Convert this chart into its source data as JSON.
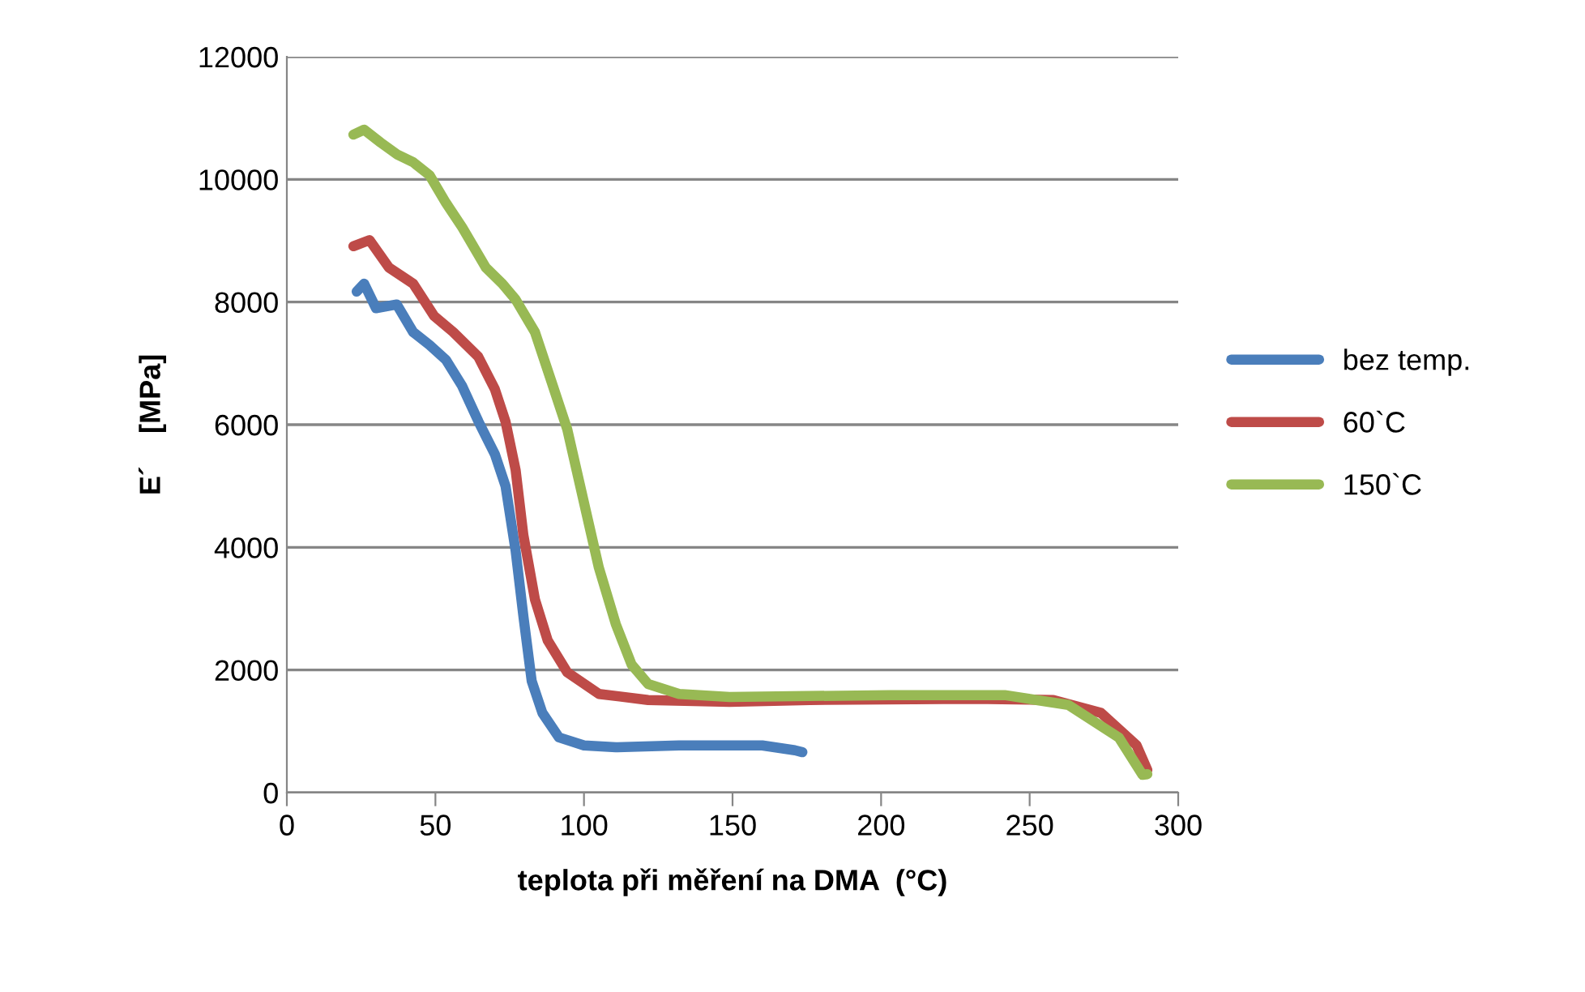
{
  "chart_data": {
    "type": "line",
    "xlabel": "teplota při měření na DMA  (°C)",
    "ylabel": "E´    [MPa]",
    "xlim": [
      0,
      300
    ],
    "xticks": [
      0,
      50,
      100,
      150,
      200,
      250,
      300
    ],
    "ylim": [
      0,
      12000
    ],
    "yticks": [
      0,
      2000,
      4000,
      6000,
      8000,
      10000,
      12000
    ],
    "grid": "y",
    "legend": "right",
    "marker": "none",
    "line_style": "solid",
    "series": [
      {
        "name": "bez temp.",
        "color": "#4a7ebb",
        "x": [
          23.5,
          26,
          30,
          37,
          42.5,
          48,
          53.5,
          59,
          64.5,
          70,
          73.6,
          77,
          79.6,
          82.4,
          86,
          91.6,
          100,
          110.7,
          132,
          160,
          171,
          173.5
        ],
        "values": [
          8170,
          8300,
          7900,
          7960,
          7510,
          7300,
          7060,
          6630,
          6050,
          5520,
          5000,
          3940,
          2880,
          1820,
          1300,
          900,
          770,
          740,
          770,
          770,
          690,
          660
        ]
      },
      {
        "name": "60`C",
        "color": "#be4b48",
        "x": [
          22.4,
          27.8,
          34.4,
          42.5,
          49.6,
          56,
          64.4,
          70,
          73.6,
          77,
          79.6,
          83.5,
          87.8,
          94.4,
          105,
          121.6,
          149,
          176,
          231,
          258,
          274,
          286,
          289.6
        ],
        "values": [
          8910,
          9010,
          8560,
          8300,
          7770,
          7510,
          7110,
          6580,
          6050,
          5260,
          4200,
          3150,
          2480,
          1960,
          1610,
          1510,
          1480,
          1510,
          1530,
          1510,
          1300,
          770,
          370
        ]
      },
      {
        "name": "150`C",
        "color": "#98b954",
        "x": [
          22.4,
          26,
          31.6,
          37,
          42.5,
          48,
          53.5,
          59,
          67,
          72.5,
          77,
          83.5,
          89,
          94.4,
          100,
          105,
          110.7,
          116,
          121.6,
          132,
          149,
          203,
          241.6,
          263,
          280,
          288,
          289.6
        ],
        "values": [
          10730,
          10810,
          10600,
          10410,
          10280,
          10070,
          9620,
          9220,
          8560,
          8300,
          8040,
          7510,
          6710,
          5920,
          4730,
          3670,
          2750,
          2090,
          1770,
          1610,
          1560,
          1590,
          1590,
          1430,
          900,
          290,
          300
        ]
      }
    ]
  }
}
